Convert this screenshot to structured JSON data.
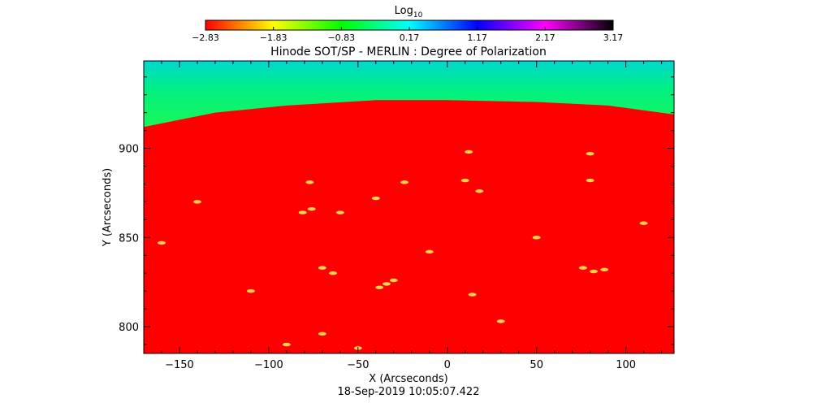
{
  "chart_data": {
    "type": "heatmap",
    "title": "Hinode SOT/SP - MERLIN : Degree of Polarization",
    "xlabel": "X (Arcseconds)",
    "ylabel": "Y (Arcseconds)",
    "timestamp": "18-Sep-2019 10:05:07.422",
    "xlim": [
      -170,
      127
    ],
    "ylim": [
      785,
      949
    ],
    "x_ticks": [
      -150,
      -100,
      -50,
      0,
      50,
      100
    ],
    "x_tick_labels": [
      "−150",
      "−100",
      "−50",
      "0",
      "50",
      "100"
    ],
    "y_ticks": [
      800,
      850,
      900
    ],
    "y_tick_labels": [
      "800",
      "850",
      "900"
    ],
    "colorbar": {
      "label_base": "Log",
      "label_sub": "10",
      "range": [
        -2.83,
        3.17
      ],
      "ticks": [
        -2.83,
        -1.83,
        -0.83,
        0.17,
        1.17,
        2.17,
        3.17
      ],
      "tick_labels": [
        "−2.83",
        "−1.83",
        "−0.83",
        "0.17",
        "1.17",
        "2.17",
        "3.17"
      ],
      "colors": [
        "#ff0000",
        "#ffff00",
        "#00ff00",
        "#00ffff",
        "#0000ff",
        "#ff00ff",
        "#000000"
      ]
    },
    "limb": {
      "description_free": true,
      "y_at_x": [
        [
          -170,
          912
        ],
        [
          -130,
          920
        ],
        [
          -90,
          924
        ],
        [
          -40,
          927
        ],
        [
          0,
          927
        ],
        [
          50,
          926
        ],
        [
          90,
          924
        ],
        [
          127,
          919
        ]
      ],
      "disk_color": "#ff0000",
      "offdisk_colors": [
        "#ffff00",
        "#80ff00",
        "#00ff40",
        "#00e0e0"
      ]
    },
    "features": [
      {
        "x": 12,
        "y": 898
      },
      {
        "x": -77,
        "y": 881
      },
      {
        "x": -24,
        "y": 881
      },
      {
        "x": 10,
        "y": 882
      },
      {
        "x": 18,
        "y": 876
      },
      {
        "x": 80,
        "y": 897
      },
      {
        "x": 80,
        "y": 882
      },
      {
        "x": -81,
        "y": 864
      },
      {
        "x": -76,
        "y": 866
      },
      {
        "x": -60,
        "y": 864
      },
      {
        "x": -40,
        "y": 872
      },
      {
        "x": -70,
        "y": 833
      },
      {
        "x": -64,
        "y": 830
      },
      {
        "x": -38,
        "y": 822
      },
      {
        "x": -34,
        "y": 824
      },
      {
        "x": -30,
        "y": 826
      },
      {
        "x": 76,
        "y": 833
      },
      {
        "x": 82,
        "y": 831
      },
      {
        "x": 88,
        "y": 832
      },
      {
        "x": -110,
        "y": 820
      },
      {
        "x": 14,
        "y": 818
      },
      {
        "x": -70,
        "y": 796
      },
      {
        "x": -90,
        "y": 790
      },
      {
        "x": -50,
        "y": 788
      },
      {
        "x": 30,
        "y": 803
      },
      {
        "x": -160,
        "y": 847
      },
      {
        "x": 110,
        "y": 858
      },
      {
        "x": -140,
        "y": 870
      },
      {
        "x": 50,
        "y": 850
      },
      {
        "x": -10,
        "y": 842
      }
    ]
  }
}
